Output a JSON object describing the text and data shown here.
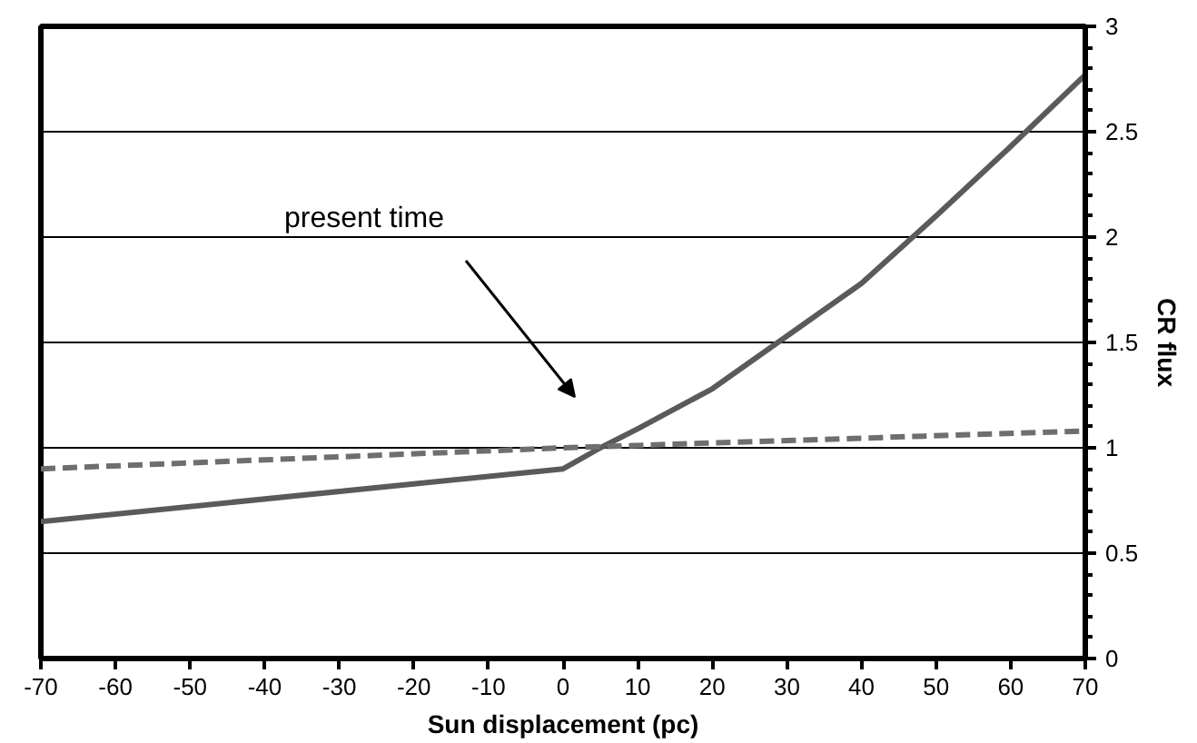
{
  "chart_data": {
    "type": "line",
    "xlabel": "Sun displacement (pc)",
    "ylabel": "CR flux",
    "xlim": [
      -70,
      70
    ],
    "ylim": [
      0,
      3
    ],
    "xticks": [
      -70,
      -60,
      -50,
      -40,
      -30,
      -20,
      -10,
      0,
      10,
      20,
      30,
      40,
      50,
      60,
      70
    ],
    "yticks": [
      0,
      0.5,
      1,
      1.5,
      2,
      2.5,
      3
    ],
    "grid": "y",
    "marker": "none",
    "series": [
      {
        "color": "#5a5a5a",
        "line_style": "solid",
        "x": [
          -70,
          0,
          5,
          10,
          20,
          30,
          40,
          50,
          60,
          70
        ],
        "values": [
          0.65,
          0.9,
          1.0,
          1.09,
          1.28,
          1.53,
          1.78,
          2.1,
          2.43,
          2.77
        ]
      },
      {
        "color": "#6e6e6e",
        "line_style": "dashed",
        "x": [
          -70,
          0,
          70
        ],
        "values": [
          0.9,
          1.0,
          1.08
        ]
      }
    ],
    "annotations": [
      "present time"
    ]
  }
}
